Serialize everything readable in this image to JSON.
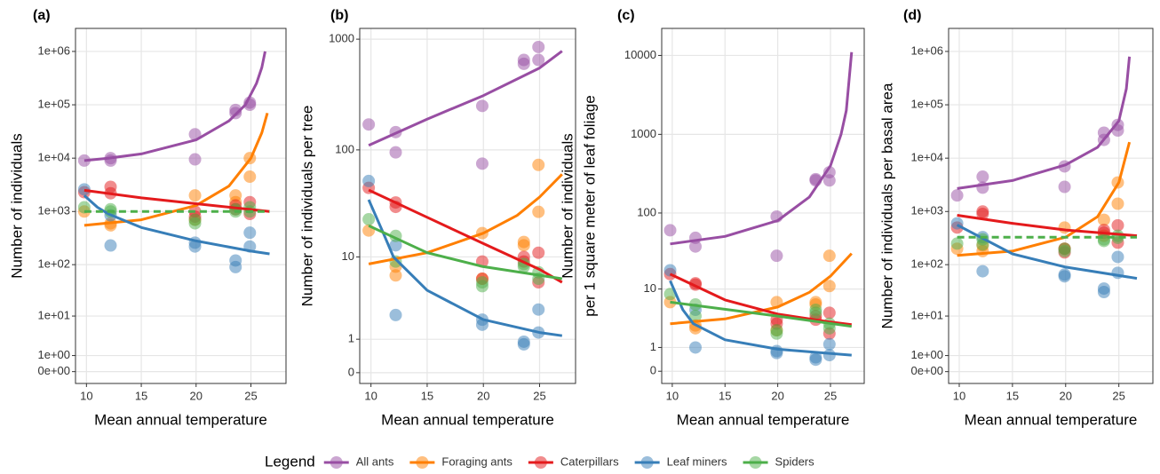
{
  "chart_data": [
    {
      "type": "scatter",
      "title": "(a)",
      "xlabel": "Mean annual temperature",
      "ylabel": [
        "Number of individuals"
      ],
      "xlim": [
        9.0,
        28.2
      ],
      "xticks": [
        10,
        15,
        20,
        25
      ],
      "ylim": [
        -0.4,
        2700000
      ],
      "yscale": "log1p",
      "grid": true,
      "yticks": [
        {
          "value": 0,
          "label": "0e+00"
        },
        {
          "value": 1,
          "label": "1e+00"
        },
        {
          "value": 10,
          "label": "1e+01"
        },
        {
          "value": 100,
          "label": "1e+02"
        },
        {
          "value": 1000,
          "label": "1e+03"
        },
        {
          "value": 10000,
          "label": "1e+04"
        },
        {
          "value": 100000,
          "label": "1e+05"
        },
        {
          "value": 1000000,
          "label": "1e+06"
        }
      ],
      "series": [
        {
          "name": "All ants",
          "color": "#984ea3",
          "x": [
            9.8,
            12.2,
            12.2,
            19.9,
            19.9,
            23.6,
            23.6,
            24.9,
            24.9
          ],
          "values": [
            9000,
            10000,
            9000,
            28000,
            9500,
            80000,
            70000,
            110000,
            100000
          ],
          "fit_x": [
            9.8,
            12,
            15,
            20,
            23,
            24.5,
            25.5,
            26,
            26.3
          ],
          "fit_values": [
            9000,
            10000,
            12000,
            22000,
            50000,
            100000,
            250000,
            500000,
            1000000
          ],
          "dashed": false
        },
        {
          "name": "Foraging ants",
          "color": "#ff7f00",
          "x": [
            9.8,
            12.2,
            12.2,
            19.9,
            19.9,
            23.6,
            23.6,
            24.9,
            24.9
          ],
          "values": [
            1000,
            600,
            550,
            2000,
            700,
            2000,
            1500,
            10000,
            4500
          ],
          "fit_x": [
            9.8,
            15,
            20,
            23,
            25,
            26,
            26.5
          ],
          "fit_values": [
            550,
            700,
            1300,
            3000,
            10000,
            30000,
            70000
          ],
          "dashed": false
        },
        {
          "name": "Caterpillars",
          "color": "#e41a1c",
          "x": [
            9.8,
            12.2,
            12.2,
            19.9,
            19.9,
            23.6,
            23.6,
            24.9,
            24.9
          ],
          "values": [
            2300,
            2900,
            2200,
            800,
            1000,
            1300,
            1100,
            1500,
            900
          ],
          "fit_x": [
            9.8,
            15,
            20,
            26.7
          ],
          "fit_values": [
            2500,
            1800,
            1400,
            1000
          ],
          "dashed": false
        },
        {
          "name": "Leaf miners",
          "color": "#377eb8",
          "x": [
            9.8,
            12.2,
            12.2,
            19.9,
            19.9,
            23.6,
            23.6,
            24.9,
            24.9
          ],
          "values": [
            2600,
            850,
            230,
            260,
            220,
            120,
            90,
            400,
            220
          ],
          "fit_x": [
            9.8,
            11,
            12,
            15,
            20,
            25,
            26.7
          ],
          "fit_values": [
            2000,
            1200,
            900,
            500,
            280,
            180,
            160
          ],
          "dashed": false
        },
        {
          "name": "Spiders",
          "color": "#4daf4a",
          "x": [
            9.8,
            12.2,
            12.2,
            19.9,
            19.9,
            23.6,
            23.6,
            24.9,
            24.9
          ],
          "values": [
            1200,
            1100,
            1000,
            700,
            600,
            1000,
            1100,
            1000,
            1200
          ],
          "fit_x": [
            9.8,
            26.7
          ],
          "fit_values": [
            1000,
            1000
          ],
          "dashed": true
        }
      ]
    },
    {
      "type": "scatter",
      "title": "(b)",
      "xlabel": "Mean annual temperature",
      "ylabel": [
        "Number of individuals per tree"
      ],
      "xlim": [
        9.0,
        28.2
      ],
      "xticks": [
        10,
        15,
        20,
        25
      ],
      "ylim": [
        -0.2,
        1250
      ],
      "yscale": "log1p",
      "grid": true,
      "yticks": [
        0,
        1,
        10,
        100,
        1000
      ],
      "series": [
        {
          "name": "All ants",
          "color": "#984ea3",
          "x": [
            9.8,
            12.2,
            12.2,
            19.9,
            19.9,
            23.6,
            23.6,
            24.9,
            24.9
          ],
          "values": [
            170,
            145,
            95,
            250,
            75,
            650,
            600,
            850,
            650
          ],
          "fit_x": [
            9.8,
            15,
            20,
            25,
            27
          ],
          "fit_values": [
            110,
            190,
            310,
            550,
            780
          ],
          "dashed": false
        },
        {
          "name": "Foraging ants",
          "color": "#ff7f00",
          "x": [
            9.8,
            12.2,
            12.2,
            19.9,
            19.9,
            23.6,
            23.6,
            24.9,
            24.9
          ],
          "values": [
            18,
            8,
            6.5,
            17,
            6,
            14,
            13,
            73,
            27
          ],
          "fit_x": [
            9.8,
            15,
            20,
            23,
            25,
            27
          ],
          "fit_values": [
            8.5,
            11,
            17,
            25,
            37,
            60
          ],
          "dashed": false
        },
        {
          "name": "Caterpillars",
          "color": "#e41a1c",
          "x": [
            9.8,
            12.2,
            12.2,
            19.9,
            19.9,
            23.6,
            23.6,
            24.9,
            24.9
          ],
          "values": [
            45,
            33,
            30,
            9,
            6,
            10,
            9,
            11,
            5.5
          ],
          "fit_x": [
            9.8,
            15,
            20,
            25,
            27
          ],
          "fit_values": [
            43,
            24,
            13.5,
            7.5,
            5.5
          ],
          "dashed": false
        },
        {
          "name": "Leaf miners",
          "color": "#377eb8",
          "x": [
            9.8,
            12.2,
            12.2,
            19.9,
            19.9,
            23.6,
            23.6,
            24.9,
            24.9
          ],
          "values": [
            52,
            13,
            2.3,
            2,
            1.7,
            0.9,
            0.8,
            2.7,
            1.3
          ],
          "fit_x": [
            9.8,
            11,
            12,
            15,
            20,
            25,
            27
          ],
          "fit_values": [
            35,
            18,
            10,
            4.5,
            2,
            1.3,
            1.15
          ],
          "dashed": false
        },
        {
          "name": "Spiders",
          "color": "#4daf4a",
          "x": [
            9.8,
            12.2,
            12.2,
            19.9,
            19.9,
            23.6,
            23.6,
            24.9,
            24.9
          ],
          "values": [
            23,
            16,
            9,
            5.5,
            5,
            8,
            8.5,
            7,
            6
          ],
          "fit_x": [
            9.8,
            15,
            20,
            27
          ],
          "fit_values": [
            20,
            11,
            8,
            6
          ],
          "dashed": false
        }
      ]
    },
    {
      "type": "scatter",
      "title": "(c)",
      "xlabel": "Mean annual temperature",
      "ylabel": [
        "Number of individuals",
        "per 1 square meter of leaf foliage"
      ],
      "xlim": [
        9.0,
        28.2
      ],
      "xticks": [
        10,
        15,
        20,
        25
      ],
      "ylim": [
        -0.3,
        22000
      ],
      "yscale": "log1p",
      "grid": true,
      "yticks": [
        0,
        1,
        10,
        100,
        1000,
        10000
      ],
      "series": [
        {
          "name": "All ants",
          "color": "#984ea3",
          "x": [
            9.8,
            12.2,
            12.2,
            19.9,
            19.9,
            23.6,
            23.6,
            24.9,
            24.9
          ],
          "values": [
            60,
            48,
            37,
            90,
            28,
            270,
            260,
            330,
            260
          ],
          "fit_x": [
            9.8,
            15,
            20,
            23,
            25,
            26,
            26.5,
            27
          ],
          "fit_values": [
            40,
            50,
            80,
            160,
            400,
            1000,
            2000,
            11000
          ],
          "dashed": false
        },
        {
          "name": "Foraging ants",
          "color": "#ff7f00",
          "x": [
            9.8,
            12.2,
            12.2,
            19.9,
            19.9,
            23.6,
            23.6,
            24.9,
            24.9
          ],
          "values": [
            6.5,
            2.8,
            2.5,
            6.5,
            2.3,
            6.5,
            6,
            28,
            11
          ],
          "fit_x": [
            9.8,
            15,
            20,
            23,
            25,
            27
          ],
          "fit_values": [
            3,
            3.6,
            5.5,
            9,
            15,
            30
          ],
          "dashed": false
        },
        {
          "name": "Caterpillars",
          "color": "#e41a1c",
          "x": [
            9.8,
            12.2,
            12.2,
            19.9,
            19.9,
            23.6,
            23.6,
            24.9,
            24.9
          ],
          "values": [
            16,
            12,
            11.5,
            3.5,
            3,
            4,
            3.5,
            4.5,
            2
          ],
          "fit_x": [
            9.8,
            15,
            20,
            25,
            27
          ],
          "fit_values": [
            16,
            7,
            4.3,
            3.2,
            2.9
          ],
          "dashed": false
        },
        {
          "name": "Leaf miners",
          "color": "#377eb8",
          "x": [
            9.8,
            12.2,
            12.2,
            19.9,
            19.9,
            23.6,
            23.6,
            24.9,
            24.9
          ],
          "values": [
            18,
            5,
            1,
            0.8,
            0.7,
            0.5,
            0.4,
            1.2,
            0.6
          ],
          "fit_x": [
            9.8,
            11,
            12,
            15,
            20,
            27
          ],
          "fit_values": [
            13,
            5,
            3,
            1.5,
            0.9,
            0.6
          ],
          "dashed": false
        },
        {
          "name": "Spiders",
          "color": "#4daf4a",
          "x": [
            9.8,
            12.2,
            12.2,
            19.9,
            19.9,
            23.6,
            23.6,
            24.9,
            24.9
          ],
          "values": [
            8.5,
            6,
            4,
            2.3,
            2,
            4.5,
            5,
            3,
            2.5
          ],
          "fit_x": [
            9.8,
            20,
            27
          ],
          "fit_values": [
            6.5,
            4,
            2.7
          ],
          "dashed": false
        }
      ]
    },
    {
      "type": "scatter",
      "title": "(d)",
      "xlabel": "Mean annual temperature",
      "ylabel": [
        "Number of individuals per basal area"
      ],
      "xlim": [
        9.0,
        28.2
      ],
      "xticks": [
        10,
        15,
        20,
        25
      ],
      "ylim": [
        -0.4,
        2700000
      ],
      "yscale": "log1p",
      "grid": true,
      "yticks": [
        {
          "value": 0,
          "label": "0e+00"
        },
        {
          "value": 1,
          "label": "1e+00"
        },
        {
          "value": 10,
          "label": "1e+01"
        },
        {
          "value": 100,
          "label": "1e+02"
        },
        {
          "value": 1000,
          "label": "1e+03"
        },
        {
          "value": 10000,
          "label": "1e+04"
        },
        {
          "value": 100000,
          "label": "1e+05"
        },
        {
          "value": 1000000,
          "label": "1e+06"
        }
      ],
      "series": [
        {
          "name": "All ants",
          "color": "#984ea3",
          "x": [
            9.8,
            12.2,
            12.2,
            19.9,
            19.9,
            23.6,
            23.6,
            24.9,
            24.9
          ],
          "values": [
            2000,
            4500,
            2800,
            7000,
            2900,
            30000,
            22000,
            42000,
            33000
          ],
          "fit_x": [
            9.8,
            15,
            20,
            23,
            25,
            25.7,
            26
          ],
          "fit_values": [
            2700,
            3800,
            7500,
            16000,
            50000,
            200000,
            800000
          ],
          "dashed": false
        },
        {
          "name": "Foraging ants",
          "color": "#ff7f00",
          "x": [
            9.8,
            12.2,
            12.2,
            19.9,
            19.9,
            23.6,
            23.6,
            24.9,
            24.9
          ],
          "values": [
            200,
            230,
            180,
            500,
            200,
            700,
            350,
            3500,
            1400
          ],
          "fit_x": [
            9.8,
            15,
            20,
            23,
            25,
            26
          ],
          "fit_values": [
            150,
            180,
            330,
            800,
            3500,
            20000
          ],
          "dashed": false
        },
        {
          "name": "Caterpillars",
          "color": "#e41a1c",
          "x": [
            9.8,
            12.2,
            12.2,
            19.9,
            19.9,
            23.6,
            23.6,
            24.9,
            24.9
          ],
          "values": [
            500,
            1000,
            900,
            200,
            170,
            450,
            400,
            550,
            260
          ],
          "fit_x": [
            9.8,
            15,
            20,
            26.7
          ],
          "fit_values": [
            850,
            600,
            450,
            350
          ],
          "dashed": false
        },
        {
          "name": "Leaf miners",
          "color": "#377eb8",
          "x": [
            9.8,
            12.2,
            12.2,
            19.9,
            19.9,
            23.6,
            23.6,
            24.9,
            24.9
          ],
          "values": [
            600,
            330,
            75,
            65,
            60,
            35,
            30,
            140,
            70
          ],
          "fit_x": [
            9.8,
            12,
            15,
            20,
            26.7
          ],
          "fit_values": [
            560,
            330,
            160,
            90,
            55
          ],
          "dashed": false
        },
        {
          "name": "Spiders",
          "color": "#4daf4a",
          "x": [
            9.8,
            12.2,
            12.2,
            19.9,
            19.9,
            23.6,
            23.6,
            24.9,
            24.9
          ],
          "values": [
            250,
            300,
            240,
            180,
            200,
            280,
            300,
            350,
            320
          ],
          "fit_x": [
            9.8,
            26.7
          ],
          "fit_values": [
            330,
            330
          ],
          "dashed": true
        }
      ]
    }
  ],
  "legend": {
    "title": "Legend",
    "position": "bottom"
  }
}
